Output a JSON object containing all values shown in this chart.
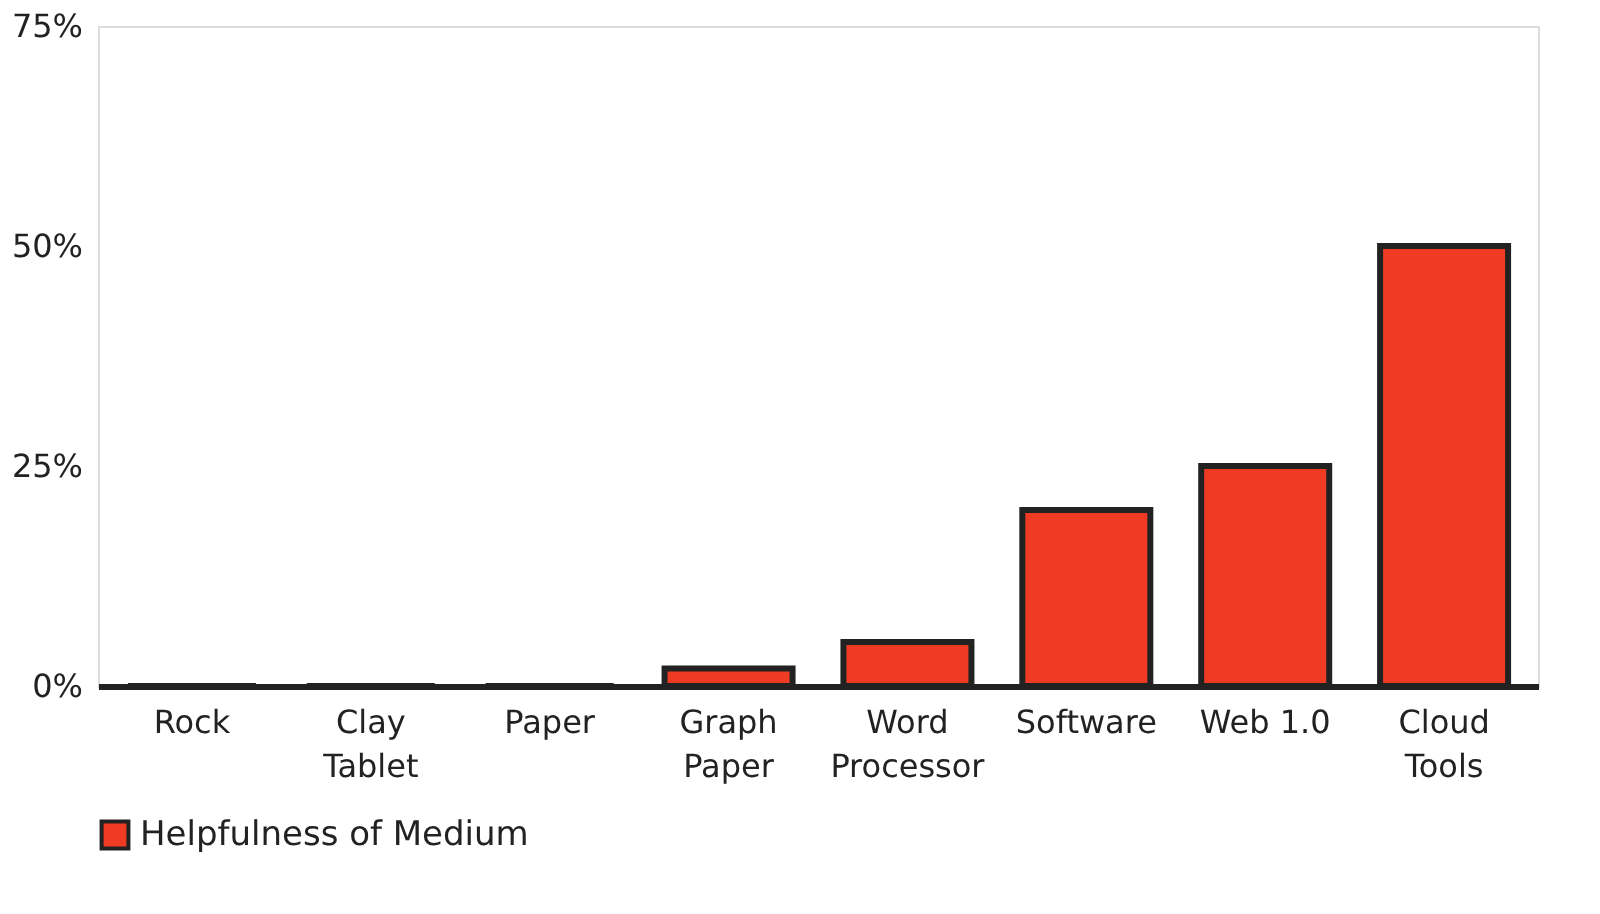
{
  "chart_data": {
    "type": "bar",
    "categories": [
      "Rock",
      "Clay Tablet",
      "Paper",
      "Graph Paper",
      "Word Processor",
      "Software",
      "Web 1.0",
      "Cloud Tools"
    ],
    "series": [
      {
        "name": "Helpfulness of Medium",
        "color": "#ef3b24",
        "values": [
          0,
          0,
          0,
          2,
          5,
          20,
          25,
          50
        ]
      }
    ],
    "ylim": [
      0,
      75
    ],
    "yticks": [
      {
        "value": 0,
        "label": "0%"
      },
      {
        "value": 25,
        "label": "25%"
      },
      {
        "value": 50,
        "label": "50%"
      },
      {
        "value": 75,
        "label": "75%"
      }
    ],
    "grid": false,
    "legend": "bottom"
  }
}
